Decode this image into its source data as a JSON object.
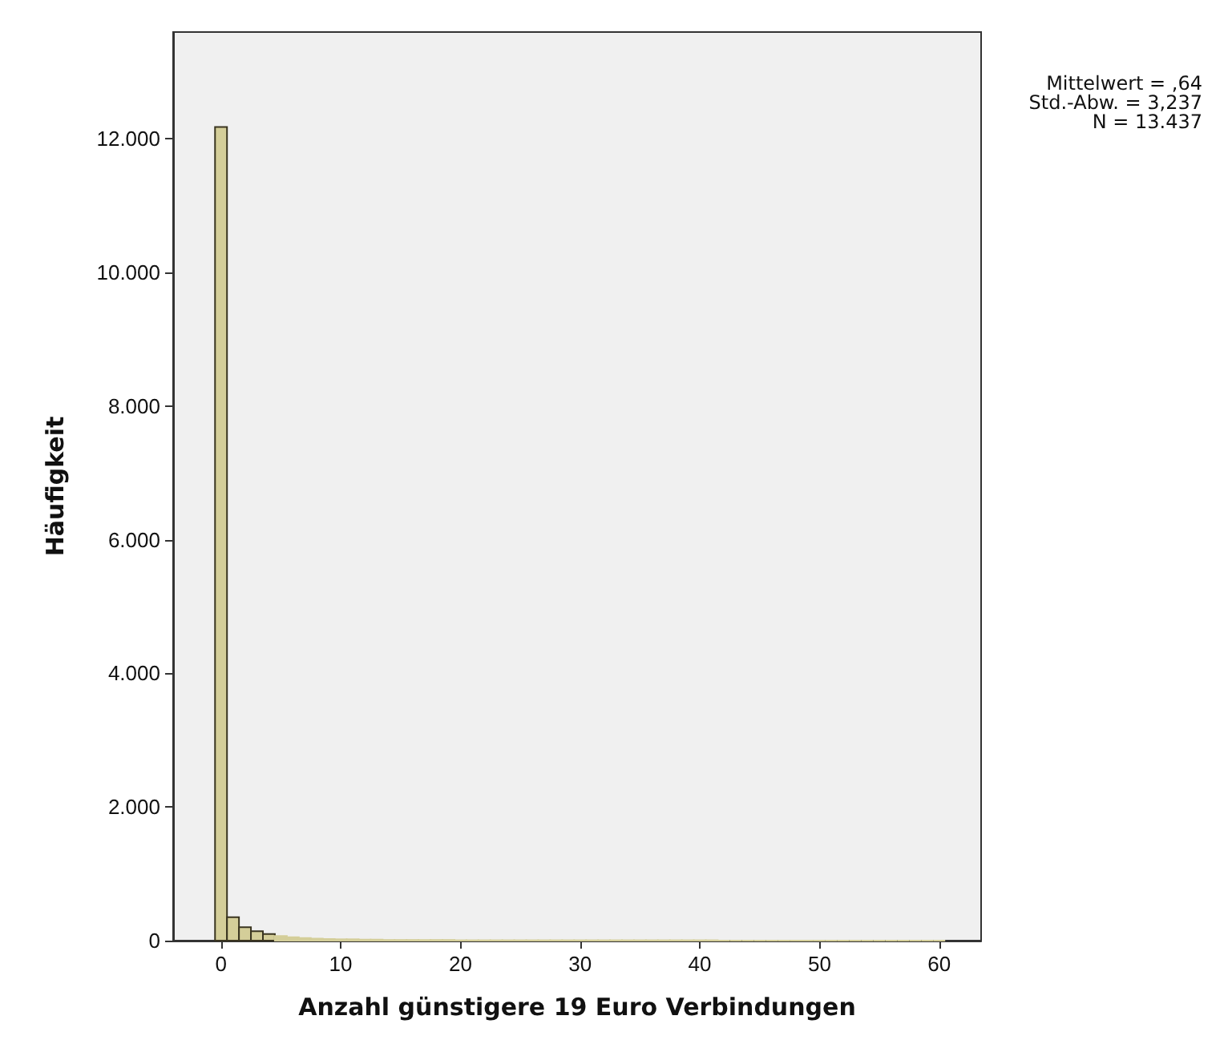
{
  "chart_data": {
    "type": "histogram",
    "xlabel": "Anzahl günstigere 19 Euro Verbindungen",
    "ylabel": "Häufigkeit",
    "annotations": [
      "Mittelwert = ,64",
      "Std.-Abw. = 3,237",
      "N = 13.437"
    ],
    "bins": [
      -0.5,
      0.5,
      1.5,
      2.5,
      3.5,
      4.5,
      5.5,
      6.5,
      7.5,
      8.5,
      9.5,
      10.5,
      11.5,
      12.5,
      13.5,
      14.5,
      15.5,
      16.5,
      17.5,
      18.5,
      19.5,
      20.5,
      21.5,
      22.5,
      23.5,
      24.5,
      25.5,
      26.5,
      27.5,
      28.5,
      29.5,
      30.5,
      31.5,
      32.5,
      33.5,
      34.5,
      35.5,
      36.5,
      37.5,
      38.5,
      39.5,
      40.5,
      41.5,
      42.5,
      43.5,
      44.5,
      45.5,
      46.5,
      47.5,
      48.5,
      49.5,
      50.5,
      51.5,
      52.5,
      53.5,
      54.5,
      55.5,
      56.5,
      57.5,
      58.5,
      59.5,
      60.5
    ],
    "values": [
      12180,
      350,
      200,
      140,
      100,
      70,
      50,
      40,
      30,
      25,
      20,
      20,
      15,
      15,
      10,
      10,
      10,
      10,
      10,
      10,
      5,
      5,
      5,
      5,
      5,
      5,
      5,
      5,
      5,
      5,
      5,
      5,
      5,
      5,
      5,
      5,
      5,
      5,
      5,
      5,
      5,
      5,
      0,
      0,
      0,
      0,
      0,
      0,
      0,
      0,
      0,
      0,
      0,
      0,
      0,
      0,
      0,
      0,
      0,
      0,
      0
    ],
    "color": "#d4ce99",
    "xlim": [
      -4,
      63.5
    ],
    "xticks": [
      0,
      10,
      20,
      30,
      40,
      50,
      60
    ],
    "ylim": [
      0,
      13600
    ],
    "yticks": [
      {
        "value": 0,
        "label": "0"
      },
      {
        "value": 2000,
        "label": "2.000"
      },
      {
        "value": 4000,
        "label": "4.000"
      },
      {
        "value": 6000,
        "label": "6.000"
      },
      {
        "value": 8000,
        "label": "8.000"
      },
      {
        "value": 10000,
        "label": "10.000"
      },
      {
        "value": 12000,
        "label": "12.000"
      }
    ],
    "grid": false
  }
}
